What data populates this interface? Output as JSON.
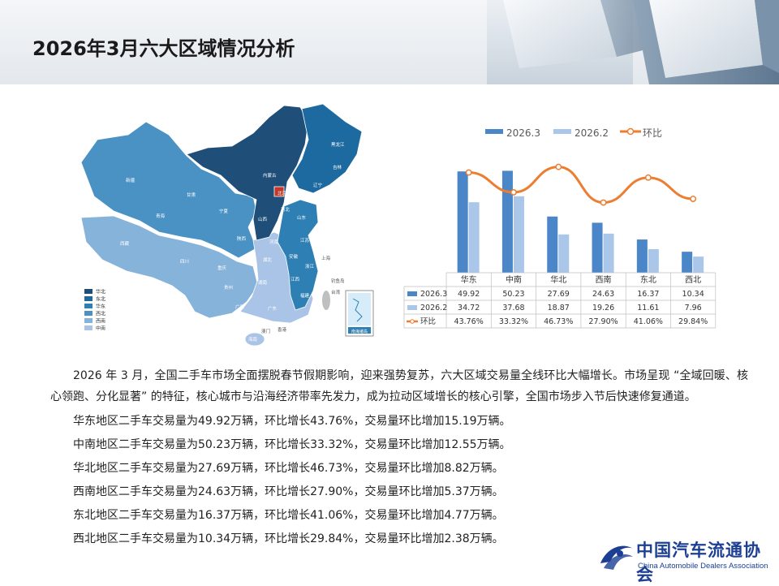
{
  "title": "2026年3月六大区域情况分析",
  "map": {
    "legend": [
      "华北",
      "东北",
      "华东",
      "西北",
      "西南",
      "中南"
    ],
    "legend_colors": [
      "#1f4e79",
      "#1d6aa0",
      "#2e7fb3",
      "#4a91c4",
      "#86b3da",
      "#a9c4e6"
    ],
    "province_labels": [
      "新疆",
      "内蒙古",
      "黑龙江",
      "吉林",
      "辽宁",
      "甘肃",
      "青海",
      "西藏",
      "四川",
      "云南",
      "贵州",
      "湖南",
      "湖北",
      "河南",
      "陕西",
      "山西",
      "河北",
      "北京",
      "山东",
      "江苏",
      "安徽",
      "浙江",
      "江西",
      "福建",
      "广东",
      "广西",
      "海南",
      "重庆",
      "宁夏",
      "上海",
      "台湾",
      "香港",
      "澳门",
      "钓鱼岛",
      "南海诸岛"
    ]
  },
  "chart_data": {
    "type": "bar",
    "categories": [
      "华东",
      "中南",
      "华北",
      "西南",
      "东北",
      "西北"
    ],
    "series": [
      {
        "name": "2026.3",
        "values": [
          49.92,
          50.23,
          27.69,
          24.63,
          16.37,
          10.34
        ],
        "color": "#4a86c8"
      },
      {
        "name": "2026.2",
        "values": [
          34.72,
          37.68,
          18.87,
          19.26,
          11.61,
          7.96
        ],
        "color": "#aac6e8"
      }
    ],
    "line_series": {
      "name": "环比",
      "values": [
        43.76,
        33.32,
        46.73,
        27.9,
        41.06,
        29.84
      ],
      "color": "#ed7d31"
    },
    "table": {
      "rows": [
        {
          "label": "2026.3",
          "cells": [
            "49.92",
            "50.23",
            "27.69",
            "24.63",
            "16.37",
            "10.34"
          ]
        },
        {
          "label": "2026.2",
          "cells": [
            "34.72",
            "37.68",
            "18.87",
            "19.26",
            "11.61",
            "7.96"
          ]
        },
        {
          "label": "环比",
          "cells": [
            "43.76%",
            "33.32%",
            "46.73%",
            "27.90%",
            "41.06%",
            "29.84%"
          ]
        }
      ]
    },
    "legend_position": "top",
    "bar_ylim": [
      0,
      60
    ],
    "line_ylim": [
      20,
      50
    ]
  },
  "text": {
    "paragraph": "2026 年 3 月，全国二手车市场全面摆脱春节假期影响，迎来强势复苏，六大区域交易量全线环比大幅增长。市场呈现 “全域回暖、核心领跑、分化显著” 的特征，核心城市与沿海经济带率先发力，成为拉动区域增长的核心引擎，全国市场步入节后快速修复通道。",
    "lines": [
      "华东地区二手车交易量为49.92万辆，环比增长43.76%，交易量环比增加15.19万辆。",
      "中南地区二手车交易量为50.23万辆，环比增长33.32%，交易量环比增加12.55万辆。",
      "华北地区二手车交易量为27.69万辆，环比增长46.73%，交易量环比增加8.82万辆。",
      "西南地区二手车交易量为24.63万辆，环比增长27.90%，交易量环比增加5.37万辆。",
      "东北地区二手车交易量为16.37万辆，环比增长41.06%，交易量环比增加4.77万辆。",
      "西北地区二手车交易量为10.34万辆，环比增长29.84%，交易量环比增加2.38万辆。"
    ]
  },
  "logo": {
    "cn": "中国汽车流通协会",
    "en": "China Automobile Dealers Association",
    "mark": "CADA"
  }
}
